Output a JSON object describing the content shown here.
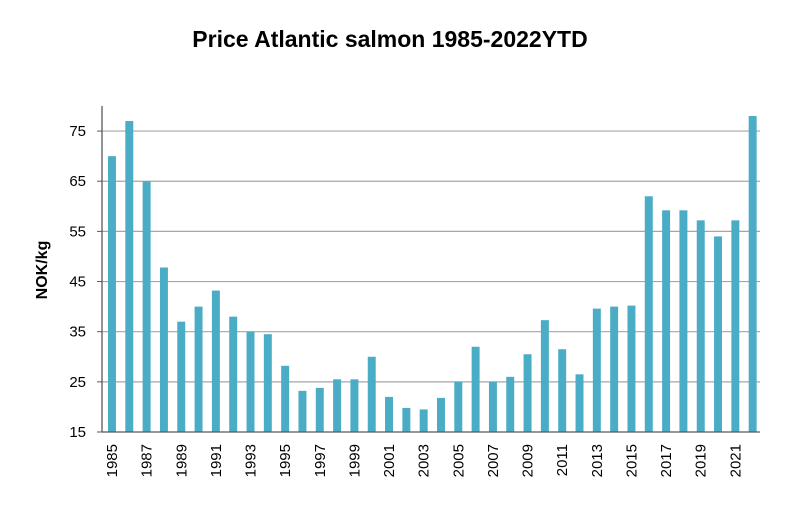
{
  "chart_data": {
    "type": "bar",
    "title": "Price Atlantic salmon 1985-2022YTD",
    "xlabel": "",
    "ylabel": "NOK/kg",
    "ylim": [
      15,
      80
    ],
    "yticks": [
      15,
      25,
      35,
      45,
      55,
      65,
      75
    ],
    "grid": true,
    "bar_color": "#4BACC6",
    "grid_color": "#A6A6A6",
    "categories": [
      "1985",
      "1986",
      "1987",
      "1988",
      "1989",
      "1990",
      "1991",
      "1992",
      "1993",
      "1994",
      "1995",
      "1996",
      "1997",
      "1998",
      "1999",
      "2000",
      "2001",
      "2002",
      "2003",
      "2004",
      "2005",
      "2006",
      "2007",
      "2008",
      "2009",
      "2010",
      "2011",
      "2012",
      "2013",
      "2014",
      "2015",
      "2016",
      "2017",
      "2018",
      "2019",
      "2020",
      "2021",
      "2022"
    ],
    "tick_labels": [
      "1985",
      "1987",
      "1989",
      "1991",
      "1993",
      "1995",
      "1997",
      "1999",
      "2001",
      "2003",
      "2005",
      "2007",
      "2009",
      "2011",
      "2013",
      "2015",
      "2017",
      "2019",
      "2021"
    ],
    "values": [
      70,
      77,
      65,
      47.8,
      37,
      40,
      43.2,
      38,
      35,
      34.5,
      28.2,
      23.2,
      23.8,
      25.5,
      25.5,
      30,
      22,
      19.8,
      19.5,
      21.8,
      25,
      32,
      25,
      26,
      30.5,
      37.3,
      31.5,
      26.5,
      39.6,
      40,
      40.2,
      62,
      59.2,
      59.2,
      57.2,
      54,
      57.2,
      78
    ]
  }
}
